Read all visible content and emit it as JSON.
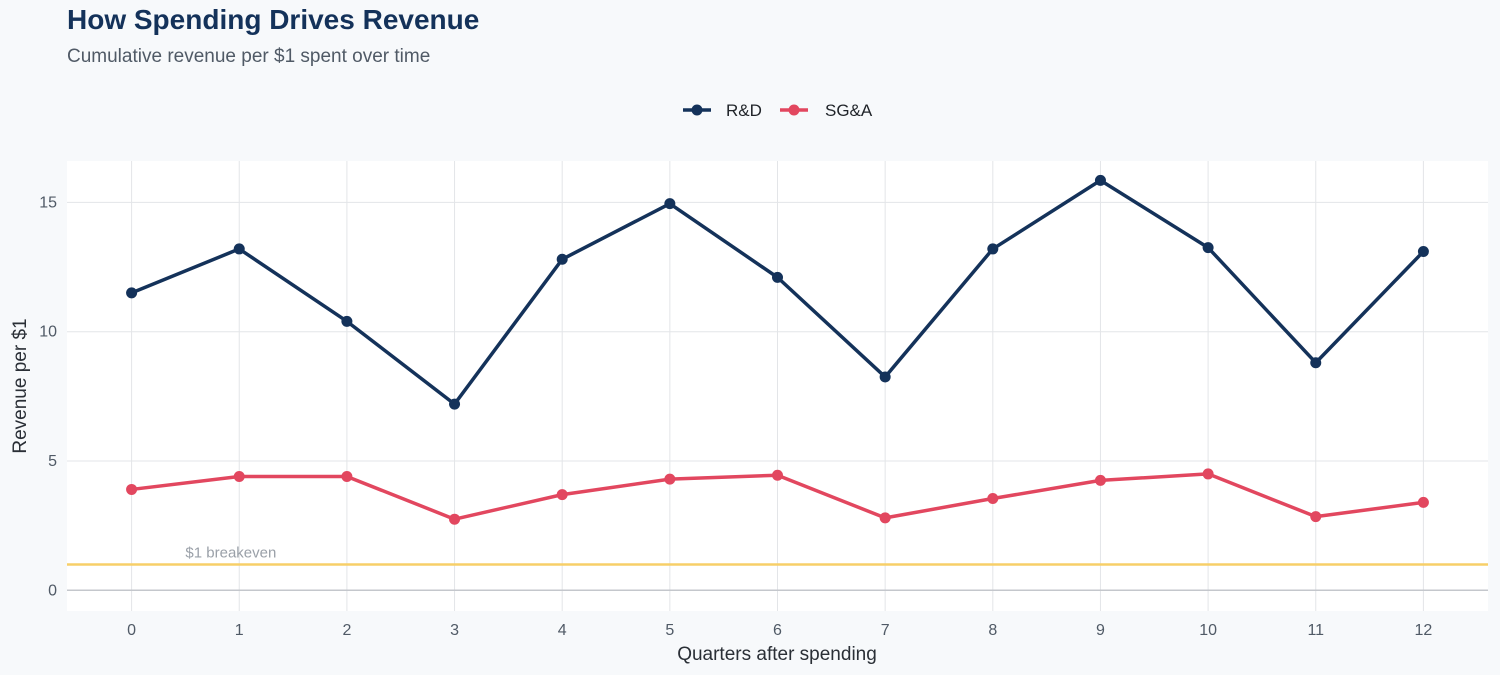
{
  "chart_data": {
    "type": "line",
    "title": "How Spending Drives Revenue",
    "subtitle": "Cumulative revenue per $1 spent over time",
    "xlabel": "Quarters after spending",
    "ylabel": "Revenue per $1",
    "x": [
      0,
      1,
      2,
      3,
      4,
      5,
      6,
      7,
      8,
      9,
      10,
      11,
      12
    ],
    "xlim": [
      -0.6,
      12.6
    ],
    "ylim": [
      -0.8,
      16.6
    ],
    "yticks": [
      0,
      5,
      10,
      15
    ],
    "grid": true,
    "legend_position": "top-center",
    "series": [
      {
        "name": "R&D",
        "color": "#14325a",
        "values": [
          11.5,
          13.2,
          10.4,
          7.2,
          12.8,
          14.95,
          12.1,
          8.25,
          13.2,
          15.85,
          13.25,
          8.8,
          13.1
        ]
      },
      {
        "name": "SG&A",
        "color": "#e2475f",
        "values": [
          3.9,
          4.4,
          4.4,
          2.75,
          3.7,
          4.3,
          4.45,
          2.8,
          3.55,
          4.25,
          4.5,
          2.85,
          3.4
        ]
      }
    ],
    "reference_line": {
      "value": 1,
      "label": "$1 breakeven",
      "color": "#f7cf68"
    }
  }
}
